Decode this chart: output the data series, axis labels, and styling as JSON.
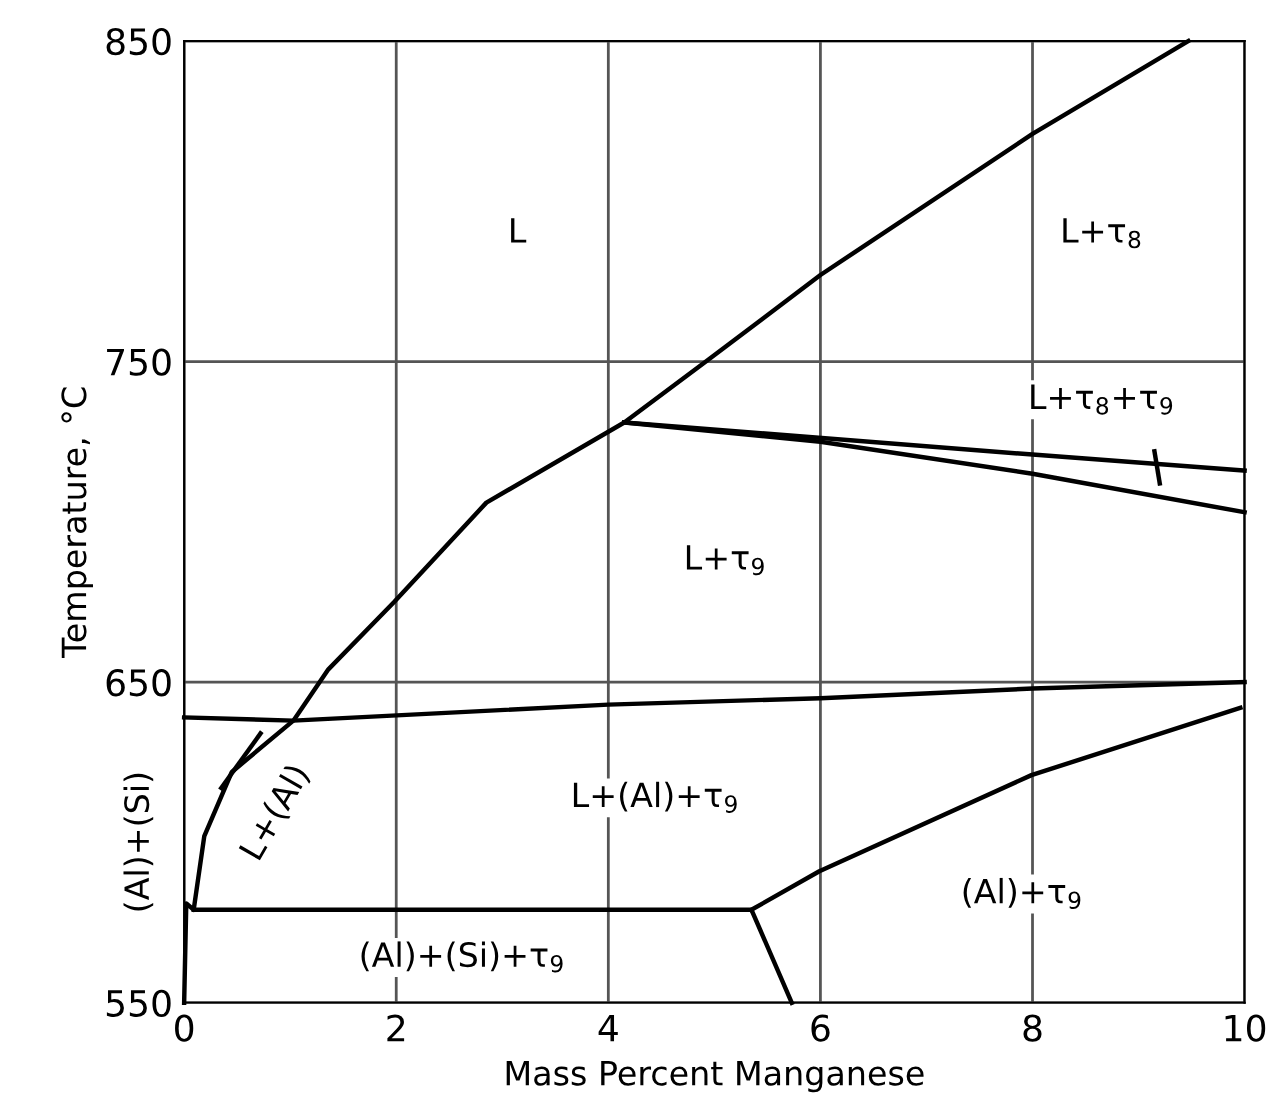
{
  "chart_data": {
    "type": "line",
    "xlabel": "Mass Percent Manganese",
    "ylabel": "Temperature, °C",
    "xlim": [
      0,
      10
    ],
    "ylim": [
      550,
      850
    ],
    "xticks": [
      0,
      2,
      4,
      6,
      8,
      10
    ],
    "yticks": [
      550,
      650,
      750,
      850
    ],
    "grid": true,
    "marker": "none",
    "line_style": "solid",
    "series": [
      {
        "color": "#000000",
        "x": [
          0,
          0.02,
          0.09,
          0.19,
          0.45,
          1.03,
          1.36,
          1.98,
          2.85,
          4.15,
          4.92,
          6,
          8,
          9.47
        ],
        "values": [
          550,
          581,
          579,
          602,
          622,
          638,
          654,
          675,
          706,
          731,
          750,
          777,
          821,
          850
        ]
      },
      {
        "color": "#000000",
        "x": [
          4.15,
          8,
          10
        ],
        "values": [
          731,
          721,
          716
        ]
      },
      {
        "color": "#000000",
        "x": [
          4.15,
          6,
          8,
          10
        ],
        "values": [
          731,
          725,
          715,
          703
        ]
      },
      {
        "color": "#000000",
        "x": [
          0,
          1.03,
          4,
          6,
          8,
          10
        ],
        "values": [
          639,
          638,
          643,
          645,
          648,
          650
        ]
      },
      {
        "color": "#000000",
        "x": [
          0.09,
          5.35,
          5.73
        ],
        "values": [
          579,
          579,
          550
        ]
      },
      {
        "color": "#000000",
        "x": [
          5.35,
          5.99,
          7.99,
          9.96
        ],
        "values": [
          579,
          591,
          621,
          642
        ]
      },
      {
        "color": "#000000",
        "x": [
          9.15,
          9.2
        ],
        "values": [
          722,
          712
        ]
      },
      {
        "color": "#000000",
        "x": [
          0.35,
          0.72
        ],
        "values": [
          617,
          634
        ]
      }
    ],
    "annotations": [
      "L",
      "L+τ$_{8}$",
      "L+τ$_{8}$+τ$_{9}$",
      "L+τ$_{9}$",
      "L+(Al)+τ$_{9}$",
      "(Al)+τ$_{9}$",
      "(Al)+(Si)+τ$_{9}$",
      "L+(Al)",
      "(Al)+(Si)"
    ]
  }
}
